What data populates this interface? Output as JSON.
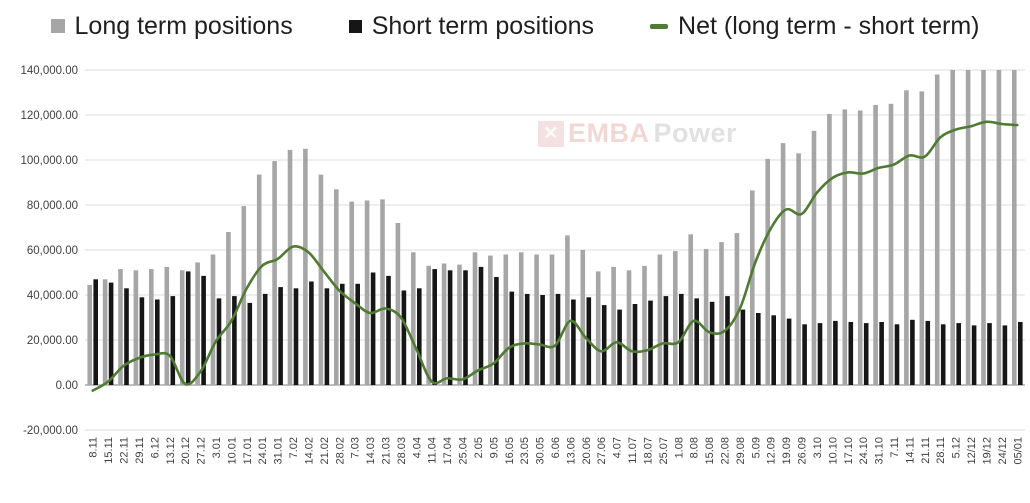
{
  "legend": {
    "items": [
      {
        "label": "Long term positions",
        "color": "#a6a6a6",
        "marker": "square"
      },
      {
        "label": "Short term positions",
        "color": "#161616",
        "marker": "square"
      },
      {
        "label": "Net (long term - short term)",
        "color": "#4f7b33",
        "marker": "dash"
      }
    ]
  },
  "watermark": {
    "logo_glyph": "✕",
    "brand_em": "EMBA",
    "brand_rest": "Power"
  },
  "chart_data": {
    "type": "bar",
    "subtype": "grouped bars with smoothed line overlay",
    "grid": true,
    "legend_position": "top",
    "ylim": [
      -20000,
      140000
    ],
    "ytick_step": 20000,
    "ytick_values": [
      140000,
      120000,
      100000,
      80000,
      60000,
      40000,
      20000,
      0,
      -20000
    ],
    "ytick_labels": [
      "140,000.00",
      "120,000.00",
      "100,000.00",
      "80,000.00",
      "60,000.00",
      "40,000.00",
      "20,000.00",
      "0.00",
      "-20,000.00"
    ],
    "xlabel": "",
    "ylabel": "",
    "title": "",
    "categories": [
      "8.11",
      "15.11",
      "22.11",
      "29.11",
      "6.12",
      "13.12",
      "20.12",
      "27.12",
      "3.01",
      "10.01",
      "17.01",
      "24.01",
      "31.01",
      "7.02",
      "14.02",
      "21.02",
      "28.02",
      "7.03",
      "14.03",
      "21.03",
      "28.03",
      "4.04",
      "11.04",
      "17.04",
      "25.04",
      "2.05",
      "9.05",
      "16.05",
      "23.05",
      "30.05",
      "6.06",
      "13.06",
      "20.06",
      "27.06",
      "4.07",
      "11.07",
      "18.07",
      "25.07",
      "1.08",
      "8.08",
      "15.08",
      "22.08",
      "29.08",
      "5.09",
      "12.09",
      "19.09",
      "26.09",
      "3.10",
      "10.10",
      "17.10",
      "24.10",
      "31.10",
      "7.11",
      "14.11",
      "21.11",
      "28.11",
      "5.12",
      "12/12",
      "19/12",
      "24/12",
      "05/01"
    ],
    "series": [
      {
        "name": "Long term positions",
        "type": "bar",
        "color": "#a6a6a6",
        "values": [
          44500,
          47000,
          51500,
          51000,
          51500,
          52500,
          51000,
          54500,
          58000,
          68000,
          79500,
          93500,
          99500,
          104500,
          105000,
          93500,
          87000,
          81500,
          82000,
          82500,
          72000,
          59000,
          53000,
          54000,
          53500,
          59000,
          57500,
          58000,
          59000,
          58000,
          58000,
          66500,
          60000,
          50500,
          52500,
          51000,
          53000,
          58000,
          59500,
          67000,
          60500,
          63500,
          67500,
          86500,
          100500,
          107500,
          103000,
          113000,
          120500,
          122500,
          122000,
          124500,
          125000,
          131000,
          130500,
          138000,
          140000,
          140000,
          140000,
          140000,
          140000
        ]
      },
      {
        "name": "Short term positions",
        "type": "bar",
        "color": "#161616",
        "values": [
          47000,
          45500,
          43000,
          39000,
          38000,
          39500,
          50500,
          48500,
          38500,
          39500,
          36500,
          40500,
          43500,
          43000,
          46000,
          43000,
          45000,
          45000,
          50000,
          48500,
          42000,
          43000,
          51500,
          51000,
          51000,
          52500,
          48000,
          41500,
          40500,
          40000,
          40500,
          38000,
          39000,
          35500,
          33500,
          36000,
          37500,
          39500,
          40500,
          38500,
          37000,
          39500,
          33500,
          32000,
          31000,
          29500,
          27000,
          27500,
          28500,
          28000,
          27500,
          28000,
          27000,
          29000,
          28500,
          27000,
          27500,
          26500,
          27500,
          26500,
          28000
        ]
      },
      {
        "name": "Net (long term - short term)",
        "type": "line",
        "color": "#4f7b33",
        "smooth": true,
        "values": [
          -2500,
          1500,
          8500,
          12000,
          13500,
          13000,
          500,
          6000,
          19500,
          28500,
          43000,
          53000,
          56000,
          61500,
          59000,
          50500,
          42000,
          36500,
          32000,
          34000,
          30000,
          16000,
          1500,
          3000,
          2500,
          6500,
          9500,
          16500,
          18500,
          18000,
          17500,
          28500,
          21000,
          15000,
          19000,
          15000,
          15500,
          18500,
          19000,
          28500,
          23500,
          24000,
          34000,
          54500,
          69500,
          78000,
          76000,
          85500,
          92000,
          94500,
          94000,
          96500,
          98000,
          102000,
          101500,
          110000,
          113500,
          115000,
          117000,
          116000,
          115500
        ]
      }
    ]
  }
}
